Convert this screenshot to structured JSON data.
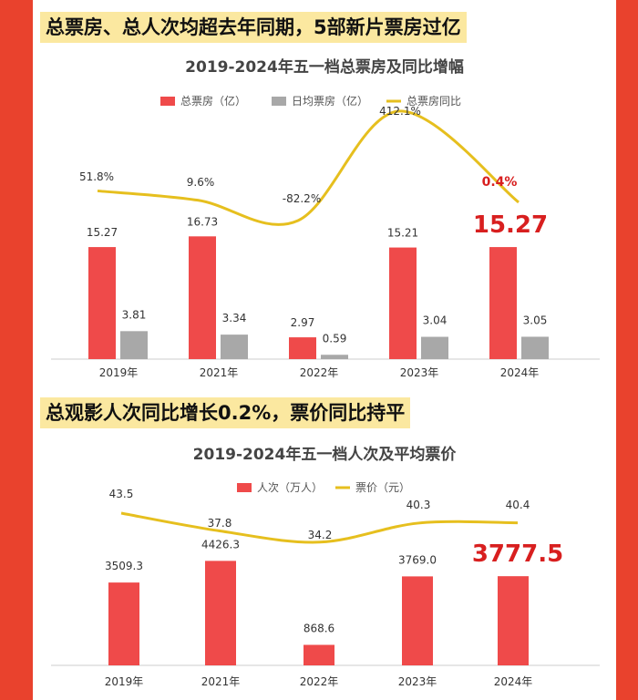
{
  "headings": {
    "top": "总票房、总人次均超去年同期，5部新片票房过亿",
    "bottom": "总观影人次同比增长0.2%，票价同比持平"
  },
  "colors": {
    "bar_red": "#ef4a4a",
    "bar_gray": "#a8a8a8",
    "line_gold": "#e6bf1e",
    "highlight": "#d81f1f",
    "background": "#e9422d",
    "heading_bg": "#fbe8a0"
  },
  "chart_data": [
    {
      "type": "bar",
      "title": "2019-2024年五一档总票房及同比增幅",
      "categories": [
        "2019年",
        "2021年",
        "2022年",
        "2023年",
        "2024年"
      ],
      "series": [
        {
          "name": "总票房（亿）",
          "kind": "bar",
          "values": [
            15.27,
            16.73,
            2.97,
            15.21,
            15.27
          ],
          "labels": [
            "15.27",
            "16.73",
            "2.97",
            "15.21",
            "15.27"
          ]
        },
        {
          "name": "日均票房（亿）",
          "kind": "bar",
          "values": [
            3.81,
            3.34,
            0.59,
            3.04,
            3.05
          ],
          "labels": [
            "3.81",
            "3.34",
            "0.59",
            "3.04",
            "3.05"
          ]
        },
        {
          "name": "总票房同比",
          "kind": "line",
          "values": [
            51.8,
            9.6,
            -82.2,
            412.1,
            0.4
          ],
          "labels": [
            "51.8%",
            "9.6%",
            "-82.2%",
            "412.1%",
            "0.4%"
          ]
        }
      ],
      "highlight_index": 4,
      "legend": "top"
    },
    {
      "type": "bar",
      "title": "2019-2024年五一档人次及平均票价",
      "categories": [
        "2019年",
        "2021年",
        "2022年",
        "2023年",
        "2024年"
      ],
      "series": [
        {
          "name": "人次（万人）",
          "kind": "bar",
          "values": [
            3509.3,
            4426.3,
            868.6,
            3769.0,
            3777.5
          ],
          "labels": [
            "3509.3",
            "4426.3",
            "868.6",
            "3769.0",
            "3777.5"
          ]
        },
        {
          "name": "票价（元）",
          "kind": "line",
          "values": [
            43.5,
            37.8,
            34.2,
            40.3,
            40.4
          ],
          "labels": [
            "43.5",
            "37.8",
            "34.2",
            "40.3",
            "40.4"
          ]
        }
      ],
      "highlight_index": 4,
      "legend": "top"
    }
  ]
}
